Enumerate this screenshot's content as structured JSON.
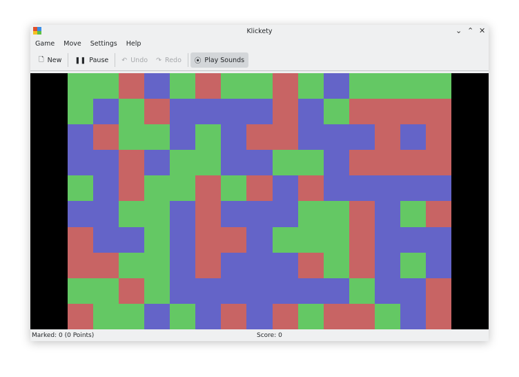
{
  "window": {
    "title": "Klickety"
  },
  "menu": [
    "Game",
    "Move",
    "Settings",
    "Help"
  ],
  "toolbar": {
    "new": "New",
    "pause": "Pause",
    "undo": "Undo",
    "redo": "Redo",
    "sounds": "Play Sounds"
  },
  "colors": {
    "G": "#64c864",
    "R": "#c86464",
    "B": "#6464c8"
  },
  "board": [
    "GGRBGRGGRGBGGGG",
    "GBGRBBBBRBGRRRR",
    "BRGGBGBRRBBBRBR",
    "BBRBGGBBGGBRRRR",
    "GBRGGRGRBRBBBBB",
    "BBGGBRBBBGGRBGR",
    "RBBGBRRBGGGRBBB",
    "RRGGBRBBBRGRBGB",
    "GGRGBBBBBBBGBBR",
    "RGGBGBRBRGRRGBR"
  ],
  "status": {
    "marked": "Marked: 0 (0 Points)",
    "score": "Score: 0"
  }
}
